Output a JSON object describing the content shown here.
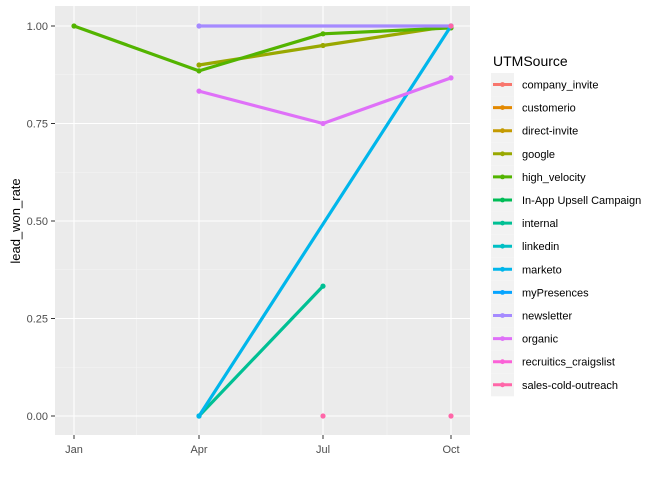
{
  "chart_data": {
    "type": "line",
    "title": "",
    "xlabel": "",
    "ylabel": "lead_won_rate",
    "x_ticks": [
      "Jan",
      "Apr",
      "Jul",
      "Oct"
    ],
    "y_ticks": [
      "0.00",
      "0.25",
      "0.50",
      "0.75",
      "1.00"
    ],
    "ylim": [
      -0.05,
      1.03
    ],
    "grid": true,
    "legend": {
      "title": "UTMSource",
      "position": "right"
    },
    "series": [
      {
        "name": "company_invite",
        "color": "#F8766D",
        "points": []
      },
      {
        "name": "customerio",
        "color": "#E38900",
        "points": []
      },
      {
        "name": "direct-invite",
        "color": "#C49A00",
        "points": []
      },
      {
        "name": "google",
        "color": "#99A800",
        "points": [
          [
            "Apr",
            0.9
          ],
          [
            "Jul",
            0.95
          ],
          [
            "Oct",
            1.0
          ]
        ]
      },
      {
        "name": "high_velocity",
        "color": "#53B400",
        "points": [
          [
            "Jan",
            1.0
          ],
          [
            "Apr",
            0.885
          ],
          [
            "Jul",
            0.98
          ],
          [
            "Oct",
            0.995
          ]
        ]
      },
      {
        "name": "In-App Upsell Campaign",
        "color": "#00BC56",
        "points": []
      },
      {
        "name": "internal",
        "color": "#00C094",
        "points": [
          [
            "Apr",
            0.0
          ],
          [
            "Jul",
            0.333
          ]
        ]
      },
      {
        "name": "linkedin",
        "color": "#00BFC4",
        "points": []
      },
      {
        "name": "marketo",
        "color": "#00B6EB",
        "points": [
          [
            "Apr",
            0.0
          ],
          [
            "Oct",
            1.0
          ]
        ]
      },
      {
        "name": "myPresences",
        "color": "#06A4FF",
        "points": []
      },
      {
        "name": "newsletter",
        "color": "#A58AFF",
        "points": [
          [
            "Apr",
            1.0
          ],
          [
            "Oct",
            1.0
          ]
        ]
      },
      {
        "name": "organic",
        "color": "#DF70F8",
        "points": [
          [
            "Apr",
            0.833
          ],
          [
            "Jul",
            0.75
          ],
          [
            "Oct",
            0.867
          ]
        ]
      },
      {
        "name": "recruitics_craigslist",
        "color": "#FB61D7",
        "points": []
      },
      {
        "name": "sales-cold-outreach",
        "color": "#FF66A8",
        "points": [
          [
            "Jul",
            0.0
          ],
          [
            "Oct",
            0.0
          ],
          [
            "Oct",
            1.0
          ]
        ]
      }
    ]
  }
}
